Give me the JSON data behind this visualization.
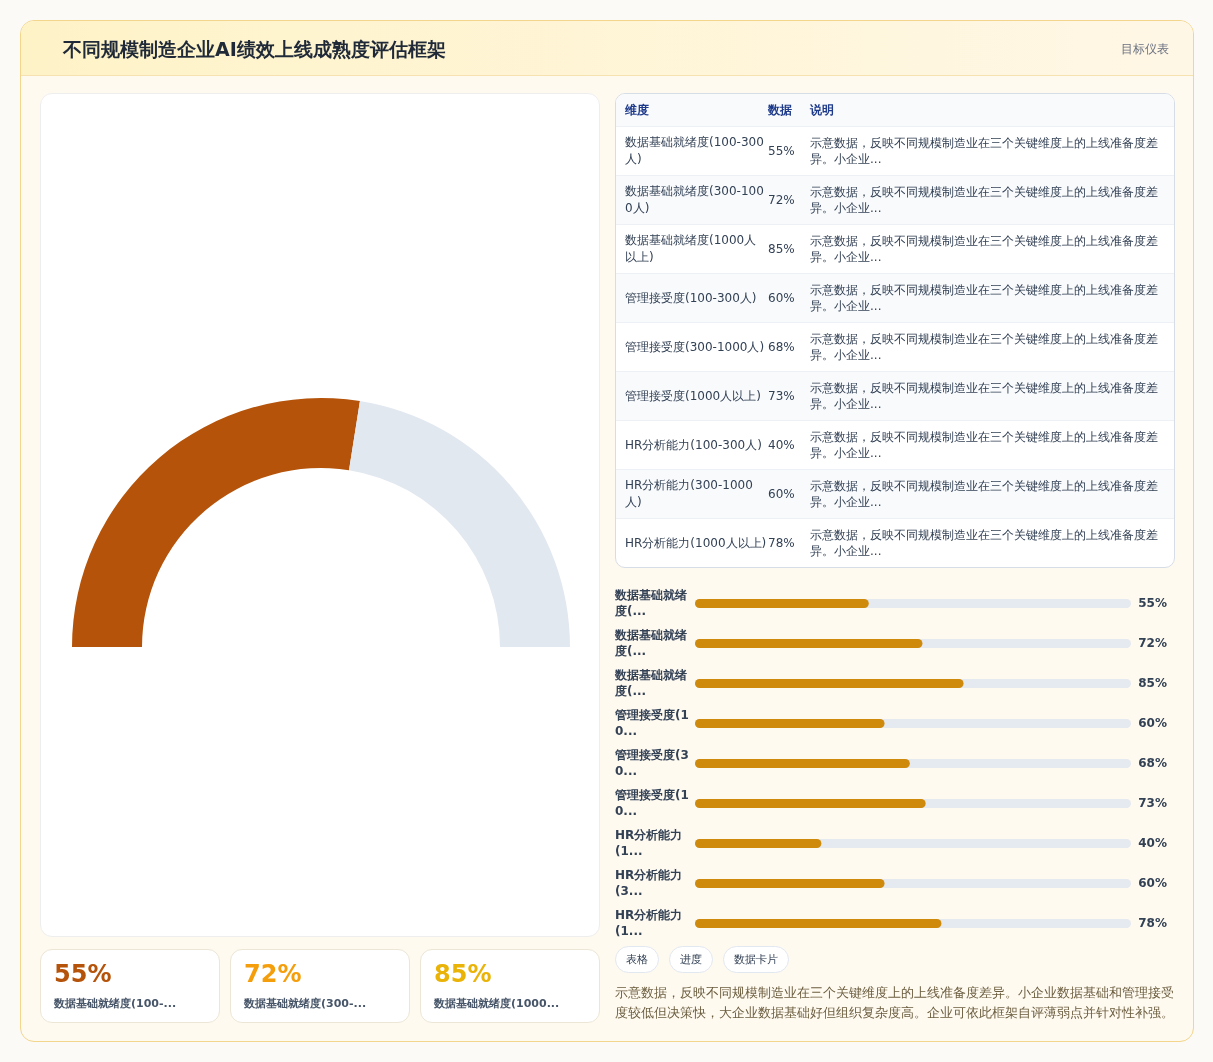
{
  "chart_data": [
    {
      "type": "donut",
      "title": "不同规模制造企业AI绩效上线成熟度评估框架",
      "categories": [
        null,
        null
      ],
      "values": [
        55,
        45
      ],
      "colors": [
        "#b45309",
        "#e2e8f0"
      ]
    },
    {
      "type": "other",
      "title": "目标仪表",
      "categories": [
        "数据基础就绪度(100-300人)",
        "数据基础就绪度(300-1000人)",
        "数据基础就绪度(1000人以上)",
        "管理接受度(100-300人)",
        "管理接受度(300-1000人)",
        "管理接受度(1000人以上)",
        "HR分析能力(100-300人)",
        "HR分析能力(300-1000人)",
        "HR分析能力(1000人以上)"
      ],
      "value_labels": [
        "55%",
        "72%",
        "85%",
        "60%",
        "68%",
        "73%",
        "40%",
        "60%",
        "78%"
      ],
      "annotations": [
        "维度",
        "数据",
        "说明",
        "示意数据，反映不同规模制造业在三个关键维度上的上线准备度差异。小企业...",
        "示意数据，反映不同规模制造业在三个关键维度上的上线准备度差异。小企业...",
        "示意数据，反映不同规模制造业在三个关键维度上的上线准备度差异。小企业...",
        "示意数据，反映不同规模制造业在三个关键维度上的上线准备度差异。小企业...",
        "示意数据，反映不同规模制造业在三个关键维度上的上线准备度差异。小企业...",
        "示意数据，反映不同规模制造业在三个关键维度上的上线准备度差异。小企业...",
        "示意数据，反映不同规模制造业在三个关键维度上的上线准备度差异。小企业...",
        "示意数据，反映不同规模制造业在三个关键维度上的上线准备度差异。小企业...",
        "示意数据，反映不同规模制造业在三个关键维度上的上线准备度差异。小企业..."
      ]
    },
    {
      "type": "bar",
      "orientation": "horizontal",
      "categories": [
        "数据基础就绪度(...",
        "数据基础就绪度(...",
        "数据基础就绪度(...",
        "管理接受度(10...",
        "管理接受度(30...",
        "管理接受度(10...",
        "HR分析能力(1...",
        "HR分析能力(3...",
        "HR分析能力(1..."
      ],
      "values": [
        55,
        72,
        85,
        60,
        68,
        73,
        40,
        60,
        78
      ],
      "value_labels": [
        "55%",
        "72%",
        "85%",
        "60%",
        "68%",
        "73%",
        "40%",
        "60%",
        "78%"
      ],
      "xlim": [
        0,
        138
      ],
      "tick_labels": false,
      "color": "#cf8a0b",
      "annotations": [
        "表格",
        "进度",
        "数据卡片",
        "示意数据，反映不同规模制造业在三个关键维度上的上线准备度差异。小企业数据基础和管理接受度较低但决策快，大企业数据基础好但组织复杂度高。企业可依此框架自评薄弱点并针对性补强。"
      ]
    },
    {
      "type": "other",
      "categories": [
        "数据基础就绪度(100-...",
        "数据基础就绪度(300-...",
        "数据基础就绪度(1000..."
      ],
      "value_labels": [
        "55%",
        "72%",
        "85%"
      ]
    }
  ]
}
